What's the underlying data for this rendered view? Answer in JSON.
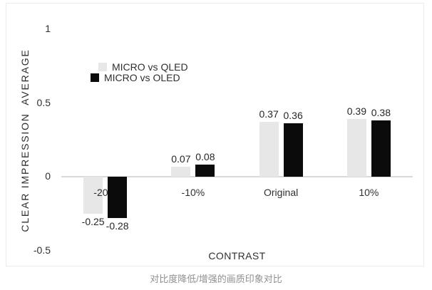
{
  "chart_data": {
    "type": "bar",
    "title": "",
    "categories": [
      "-20%",
      "-10%",
      "Original",
      "10%"
    ],
    "series": [
      {
        "name": "MICRO vs QLED",
        "color": "#e7e7e7",
        "values": [
          -0.25,
          0.07,
          0.37,
          0.39
        ]
      },
      {
        "name": "MICRO vs OLED",
        "color": "#0b0b0b",
        "values": [
          -0.28,
          0.08,
          0.36,
          0.38
        ]
      }
    ],
    "xlabel": "CONTRAST",
    "ylabel": "CLEAR IMPRESSION  AVERAGE",
    "ylim": [
      -0.5,
      1
    ],
    "yticks": [
      1,
      0.5,
      0,
      -0.5
    ],
    "ytick_labels": [
      "1",
      "0.5",
      "0",
      "-0.5"
    ],
    "grid": false,
    "legend_position": "inside-top-left",
    "axis_line_color": "#d9d9d9",
    "text_color": "#2f2f2f"
  },
  "caption": "对比度降低/增强的画质印象对比"
}
